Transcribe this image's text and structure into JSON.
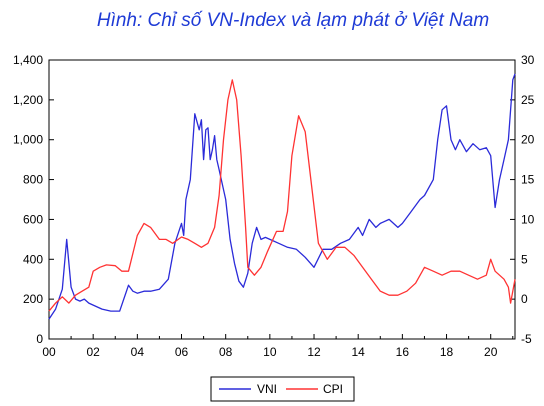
{
  "chart_data": {
    "type": "line",
    "title": "Hình: Chỉ số VN-Index và lạm phát ở Việt Nam",
    "legend_position": "bottom",
    "grid": false,
    "x_axis": {
      "range": [
        2000.0,
        2021.1
      ],
      "ticks": [
        {
          "value": 2000,
          "label": "00"
        },
        {
          "value": 2002,
          "label": "02"
        },
        {
          "value": 2004,
          "label": "04"
        },
        {
          "value": 2006,
          "label": "06"
        },
        {
          "value": 2008,
          "label": "08"
        },
        {
          "value": 2010,
          "label": "10"
        },
        {
          "value": 2012,
          "label": "12"
        },
        {
          "value": 2014,
          "label": "14"
        },
        {
          "value": 2016,
          "label": "16"
        },
        {
          "value": 2018,
          "label": "18"
        },
        {
          "value": 2020,
          "label": "20"
        }
      ]
    },
    "y_left": {
      "range": [
        0,
        1400
      ],
      "ticks": [
        {
          "value": 0,
          "label": "0"
        },
        {
          "value": 200,
          "label": "200"
        },
        {
          "value": 400,
          "label": "400"
        },
        {
          "value": 600,
          "label": "600"
        },
        {
          "value": 800,
          "label": "800"
        },
        {
          "value": 1000,
          "label": "1,000"
        },
        {
          "value": 1200,
          "label": "1,200"
        },
        {
          "value": 1400,
          "label": "1,400"
        }
      ]
    },
    "y_right": {
      "range": [
        -5,
        30
      ],
      "ticks": [
        {
          "value": -5,
          "label": "-5"
        },
        {
          "value": 0,
          "label": "0"
        },
        {
          "value": 5,
          "label": "5"
        },
        {
          "value": 10,
          "label": "10"
        },
        {
          "value": 15,
          "label": "15"
        },
        {
          "value": 20,
          "label": "20"
        },
        {
          "value": 25,
          "label": "25"
        },
        {
          "value": 30,
          "label": "30"
        }
      ]
    },
    "series": [
      {
        "name": "VNI",
        "axis": "left",
        "color": "#2b2bd9",
        "x": [
          2000.0,
          2000.3,
          2000.6,
          2000.8,
          2001.0,
          2001.2,
          2001.4,
          2001.6,
          2001.8,
          2002.0,
          2002.4,
          2002.8,
          2003.2,
          2003.6,
          2003.8,
          2004.0,
          2004.3,
          2004.6,
          2005.0,
          2005.4,
          2005.7,
          2006.0,
          2006.1,
          2006.2,
          2006.4,
          2006.6,
          2006.8,
          2006.9,
          2007.0,
          2007.1,
          2007.2,
          2007.3,
          2007.4,
          2007.5,
          2007.6,
          2007.7,
          2007.8,
          2008.0,
          2008.2,
          2008.4,
          2008.6,
          2008.8,
          2009.0,
          2009.2,
          2009.4,
          2009.6,
          2009.8,
          2010.0,
          2010.4,
          2010.8,
          2011.2,
          2011.6,
          2012.0,
          2012.4,
          2012.8,
          2013.2,
          2013.6,
          2014.0,
          2014.2,
          2014.5,
          2014.8,
          2015.0,
          2015.4,
          2015.8,
          2016.0,
          2016.4,
          2016.8,
          2017.0,
          2017.4,
          2017.6,
          2017.8,
          2018.0,
          2018.2,
          2018.4,
          2018.6,
          2018.9,
          2019.2,
          2019.5,
          2019.8,
          2020.0,
          2020.2,
          2020.4,
          2020.6,
          2020.8,
          2021.0,
          2021.1
        ],
        "y": [
          100,
          150,
          250,
          500,
          260,
          200,
          190,
          200,
          180,
          170,
          150,
          140,
          140,
          270,
          240,
          230,
          240,
          240,
          250,
          300,
          480,
          580,
          520,
          700,
          800,
          1130,
          1050,
          1100,
          900,
          1050,
          1060,
          900,
          950,
          1020,
          900,
          850,
          800,
          700,
          500,
          380,
          290,
          260,
          330,
          480,
          560,
          500,
          510,
          500,
          480,
          460,
          450,
          410,
          360,
          450,
          450,
          480,
          500,
          560,
          520,
          600,
          560,
          580,
          600,
          560,
          580,
          640,
          700,
          720,
          800,
          1000,
          1150,
          1170,
          1000,
          950,
          1000,
          940,
          980,
          950,
          960,
          920,
          660,
          800,
          900,
          1000,
          1300,
          1330
        ]
      },
      {
        "name": "CPI",
        "axis": "right",
        "color": "#ff3333",
        "x": [
          2000.0,
          2000.3,
          2000.6,
          2000.9,
          2001.2,
          2001.5,
          2001.8,
          2002.0,
          2002.3,
          2002.6,
          2003.0,
          2003.3,
          2003.6,
          2004.0,
          2004.3,
          2004.6,
          2005.0,
          2005.3,
          2005.6,
          2006.0,
          2006.3,
          2006.6,
          2006.9,
          2007.2,
          2007.5,
          2007.7,
          2007.9,
          2008.1,
          2008.3,
          2008.5,
          2008.7,
          2008.9,
          2009.0,
          2009.3,
          2009.6,
          2009.9,
          2010.3,
          2010.6,
          2010.8,
          2011.0,
          2011.3,
          2011.6,
          2011.9,
          2012.2,
          2012.6,
          2013.0,
          2013.4,
          2013.8,
          2014.2,
          2014.6,
          2015.0,
          2015.4,
          2015.8,
          2016.2,
          2016.6,
          2017.0,
          2017.4,
          2017.8,
          2018.2,
          2018.6,
          2019.0,
          2019.4,
          2019.8,
          2020.0,
          2020.2,
          2020.6,
          2020.8,
          2020.9,
          2021.1
        ],
        "y": [
          -1.5,
          -0.5,
          0.3,
          -0.5,
          0.5,
          1.0,
          1.5,
          3.5,
          4.0,
          4.3,
          4.2,
          3.5,
          3.5,
          8.0,
          9.5,
          9.0,
          7.5,
          7.5,
          7.0,
          7.8,
          7.5,
          7.0,
          6.5,
          7.0,
          9.0,
          13.0,
          20.0,
          25.0,
          27.5,
          25.0,
          18.0,
          9.0,
          4.0,
          3.0,
          4.0,
          6.0,
          8.5,
          8.5,
          11.0,
          18.0,
          23.0,
          21.0,
          14.0,
          7.0,
          5.0,
          6.5,
          6.5,
          5.5,
          4.0,
          2.5,
          1.0,
          0.5,
          0.5,
          1.0,
          2.0,
          4.0,
          3.5,
          3.0,
          3.5,
          3.5,
          3.0,
          2.5,
          3.0,
          5.0,
          3.5,
          2.5,
          1.5,
          -0.5,
          2.5
        ]
      }
    ]
  }
}
